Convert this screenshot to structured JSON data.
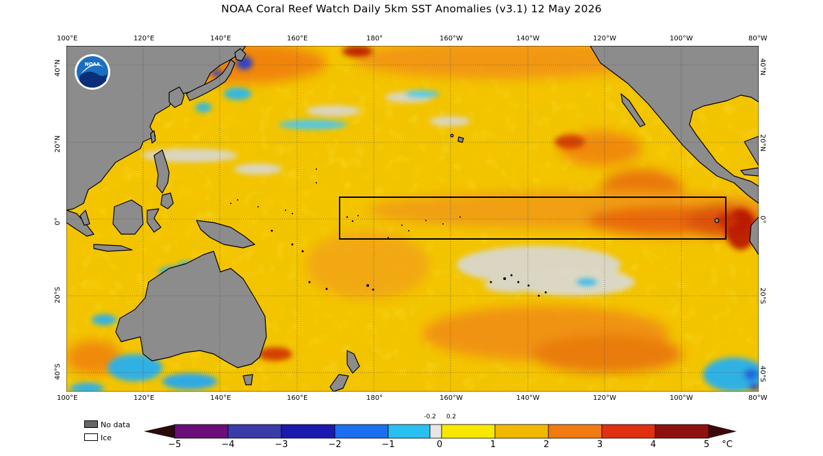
{
  "title": "NOAA Coral Reef Watch Daily 5km SST Anomalies  (v3.1)   12 May 2026",
  "logo_text": "NOAA",
  "lon_labels": [
    "100°E",
    "120°E",
    "140°E",
    "160°E",
    "180°",
    "160°W",
    "140°W",
    "120°W",
    "100°W",
    "80°W"
  ],
  "lat_labels_left": [
    "40°N",
    "20°N",
    "0°",
    "20°S",
    "40°S"
  ],
  "lat_labels_right": [
    "40°N",
    "20°N",
    "0°",
    "20°S",
    "40°S"
  ],
  "legend": {
    "no_data": "No data",
    "ice": "Ice",
    "no_data_color": "#666666",
    "ice_color": "#ffffff"
  },
  "colorbar": {
    "ticks": [
      "−5",
      "−4",
      "−3",
      "−2",
      "−1",
      "0",
      "1",
      "2",
      "3",
      "4",
      "5"
    ],
    "unit": "°C",
    "small_ticks": [
      "-0.2",
      "0.2"
    ]
  },
  "colors": {
    "ocean_base": "#f2c400",
    "land": "#8c8c8c",
    "neutral": "#d8d8d8",
    "warm": "#f07a10",
    "hot": "#c02000",
    "cool": "#28b8f0",
    "cold": "#1a3cd8"
  }
}
